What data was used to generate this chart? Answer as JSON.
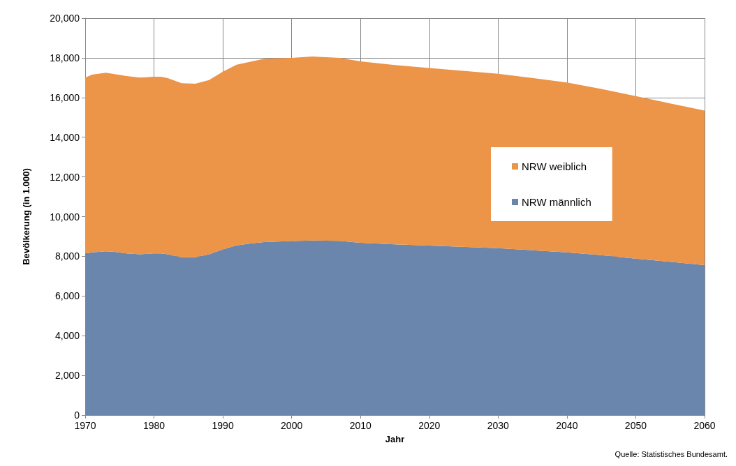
{
  "chart_data": {
    "type": "area",
    "stacked": true,
    "xlabel": "Jahr",
    "ylabel": "Bevölkerung (in 1.000)",
    "annotations": [
      "Quelle: Statistisches Bundesamt."
    ],
    "x": [
      1970,
      1971,
      1973,
      1974,
      1976,
      1978,
      1980,
      1981,
      1982,
      1984,
      1986,
      1988,
      1990,
      1992,
      1994,
      1996,
      2000,
      2003,
      2007,
      2010,
      2015,
      2020,
      2030,
      2040,
      2045,
      2050,
      2055,
      2060
    ],
    "series": [
      {
        "name": "NRW männlich",
        "color": "#6a86ad",
        "values": [
          8150,
          8200,
          8250,
          8230,
          8150,
          8100,
          8150,
          8150,
          8100,
          7950,
          7950,
          8100,
          8350,
          8550,
          8650,
          8720,
          8770,
          8800,
          8780,
          8680,
          8600,
          8540,
          8410,
          8200,
          8060,
          7880,
          7720,
          7560
        ]
      },
      {
        "name": "NRW weiblich",
        "color": "#ec9447",
        "values": [
          8850,
          8950,
          9000,
          8970,
          8930,
          8900,
          8900,
          8900,
          8880,
          8770,
          8750,
          8780,
          8950,
          9100,
          9150,
          9230,
          9230,
          9270,
          9220,
          9140,
          9040,
          8950,
          8790,
          8560,
          8370,
          8190,
          7980,
          7780
        ]
      }
    ],
    "xlim": [
      1970,
      2060
    ],
    "xticks": [
      1970,
      1980,
      1990,
      2000,
      2010,
      2020,
      2030,
      2040,
      2050,
      2060
    ],
    "ylim": [
      0,
      20000
    ],
    "yticks": [
      0,
      {
        "value": 2000,
        "label": "2,000"
      },
      {
        "value": 4000,
        "label": "4,000"
      },
      {
        "value": 6000,
        "label": "6,000"
      },
      {
        "value": 8000,
        "label": "8,000"
      },
      {
        "value": 10000,
        "label": "10,000"
      },
      {
        "value": 12000,
        "label": "12,000"
      },
      {
        "value": 14000,
        "label": "14,000"
      },
      {
        "value": 16000,
        "label": "16,000"
      },
      {
        "value": 18000,
        "label": "18,000"
      },
      {
        "value": 20000,
        "label": "20,000"
      }
    ],
    "grid": true,
    "legend": "right"
  }
}
